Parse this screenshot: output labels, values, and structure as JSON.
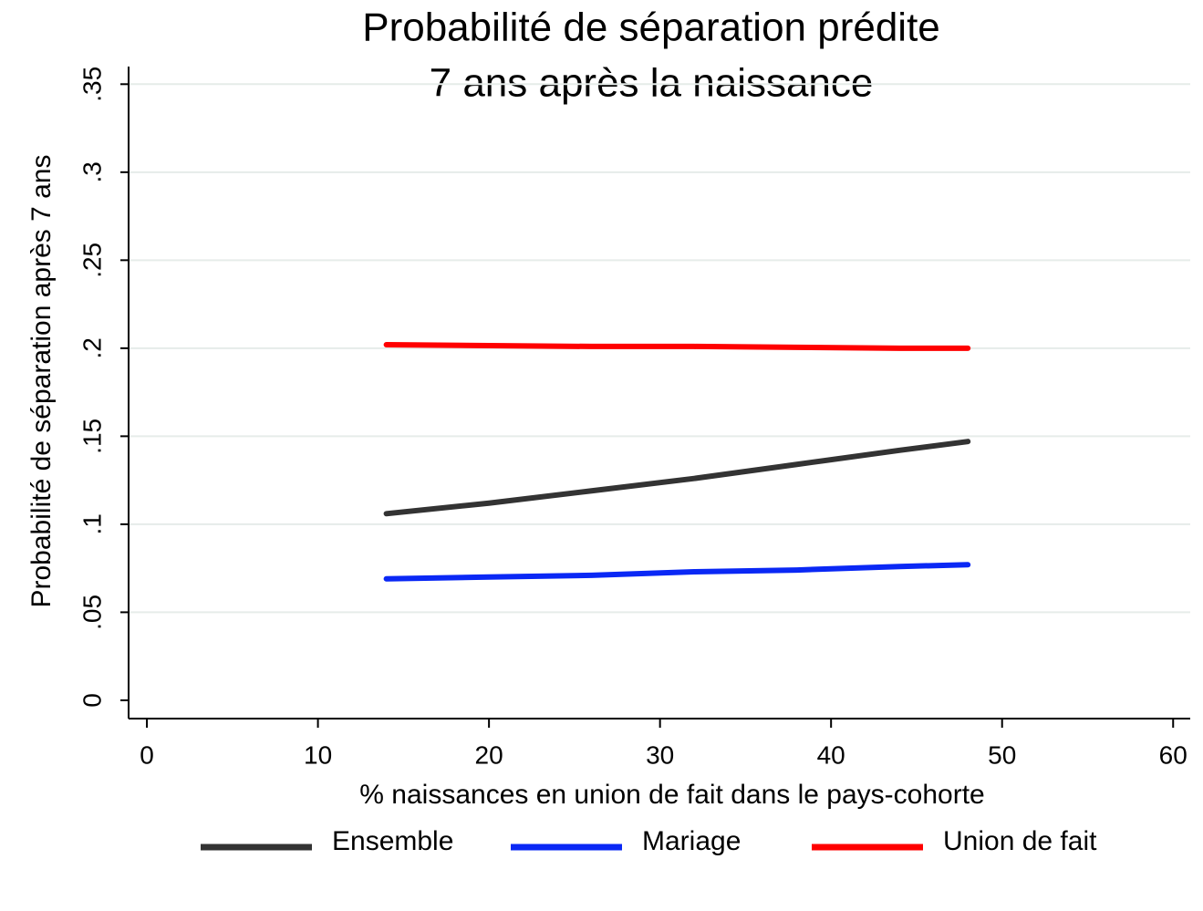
{
  "chart_data": {
    "type": "line",
    "title": [
      "Probabilité de séparation prédite",
      "7 ans après la naissance"
    ],
    "x_label": "% naissances en union de fait dans le pays-cohorte",
    "y_label": "Probabilité de séparation après 7 ans",
    "x": [
      14,
      20,
      26,
      32,
      38,
      44,
      48
    ],
    "series": [
      {
        "name": "Ensemble",
        "color": "#333333",
        "values": [
          0.106,
          0.112,
          0.119,
          0.126,
          0.134,
          0.142,
          0.147
        ]
      },
      {
        "name": "Mariage",
        "color": "#0a28f5",
        "values": [
          0.069,
          0.07,
          0.071,
          0.073,
          0.074,
          0.076,
          0.077
        ]
      },
      {
        "name": "Union de fait",
        "color": "#ff0000",
        "values": [
          0.202,
          0.2015,
          0.201,
          0.201,
          0.2005,
          0.2,
          0.2
        ]
      }
    ],
    "xlim": [
      -1.07,
      61
    ],
    "ylim": [
      -0.0104,
      0.36
    ],
    "xticks": [
      0,
      10,
      20,
      30,
      40,
      50,
      60
    ],
    "yticks": [
      0,
      {
        "value": 0.05,
        "label": ".05"
      },
      {
        "value": 0.1,
        "label": ".1"
      },
      {
        "value": 0.15,
        "label": ".15"
      },
      {
        "value": 0.2,
        "label": ".2"
      },
      {
        "value": 0.25,
        "label": ".25"
      },
      {
        "value": 0.3,
        "label": ".3"
      },
      {
        "value": 0.35,
        "label": ".35"
      }
    ],
    "grid": true,
    "legend": "bottom"
  }
}
